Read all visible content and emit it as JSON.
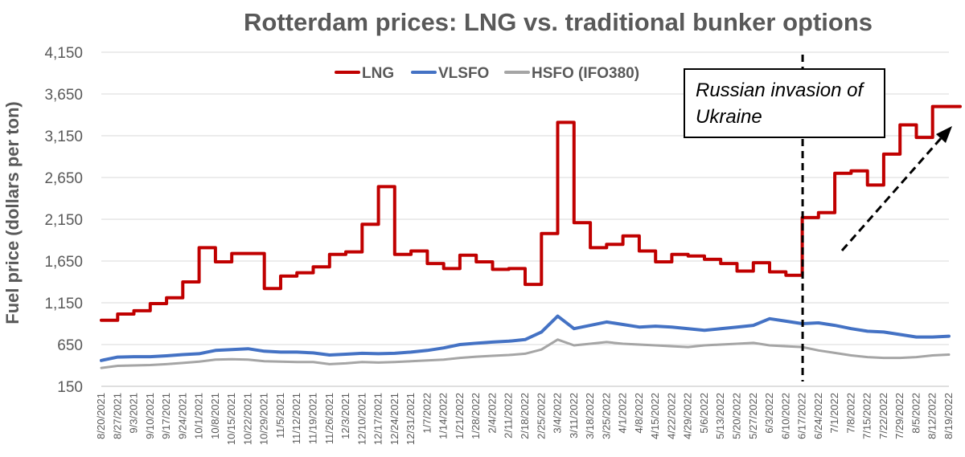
{
  "chart_data": {
    "type": "line",
    "title": "Rotterdam prices: LNG vs. traditional bunker options",
    "ylabel": "Fuel price  (dollars per ton)",
    "xlabel": "",
    "ylim": [
      150,
      4150
    ],
    "yticks": [
      "4,150",
      "3,650",
      "3,150",
      "2,650",
      "2,150",
      "1,650",
      "1,150",
      "650",
      "150"
    ],
    "ytick_values": [
      4150,
      3650,
      3150,
      2650,
      2150,
      1650,
      1150,
      650,
      150
    ],
    "grid": "horizontal",
    "legend_position": "top-left",
    "x": [
      "8/20/2021",
      "8/27/2021",
      "9/3/2021",
      "9/10/2021",
      "9/17/2021",
      "9/24/2021",
      "10/1/2021",
      "10/8/2021",
      "10/15/2021",
      "10/22/2021",
      "10/29/2021",
      "11/5/2021",
      "11/12/2021",
      "11/19/2021",
      "11/26/2021",
      "12/3/2021",
      "12/10/2021",
      "12/17/2021",
      "12/24/2021",
      "12/31/2021",
      "1/7/2022",
      "1/14/2022",
      "1/21/2022",
      "1/28/2022",
      "2/4/2022",
      "2/11/2022",
      "2/18/2022",
      "2/25/2022",
      "3/4/2022",
      "3/11/2022",
      "3/18/2022",
      "3/25/2022",
      "4/1/2022",
      "4/8/2022",
      "4/15/2022",
      "4/22/2022",
      "4/29/2022",
      "5/6/2022",
      "5/13/2022",
      "5/20/2022",
      "5/27/2022",
      "6/3/2022",
      "6/10/2022",
      "6/17/2022",
      "6/24/2022",
      "7/1/2022",
      "7/8/2022",
      "7/15/2022",
      "7/22/2022",
      "7/29/2022",
      "8/5/2022",
      "8/12/2022",
      "8/19/2022"
    ],
    "series": [
      {
        "name": "LNG",
        "color": "#c00000",
        "step": true,
        "values": [
          940,
          1015,
          1055,
          1140,
          1210,
          1400,
          1810,
          1640,
          1740,
          1740,
          1320,
          1470,
          1510,
          1580,
          1730,
          1760,
          2090,
          2540,
          1730,
          1770,
          1620,
          1560,
          1720,
          1640,
          1550,
          1560,
          1370,
          1980,
          3310,
          2110,
          1810,
          1850,
          1950,
          1770,
          1640,
          1730,
          1710,
          1670,
          1620,
          1530,
          1630,
          1520,
          1480,
          2170,
          2230,
          2700,
          2730,
          2560,
          2930,
          3280,
          3130,
          3500,
          3500
        ]
      },
      {
        "name": "VLSFO",
        "color": "#4472c4",
        "values": [
          460,
          500,
          505,
          505,
          515,
          530,
          540,
          580,
          590,
          600,
          570,
          560,
          560,
          550,
          525,
          535,
          545,
          540,
          545,
          560,
          580,
          610,
          650,
          665,
          680,
          690,
          710,
          800,
          990,
          840,
          880,
          920,
          890,
          860,
          870,
          860,
          840,
          820,
          840,
          860,
          880,
          960,
          930,
          900,
          910,
          880,
          840,
          810,
          800,
          770,
          740,
          740,
          750
        ]
      },
      {
        "name": "HSFO (IFO380)",
        "color": "#a5a5a5",
        "values": [
          370,
          395,
          400,
          405,
          415,
          430,
          445,
          470,
          475,
          470,
          450,
          445,
          440,
          440,
          415,
          425,
          440,
          435,
          440,
          450,
          460,
          470,
          490,
          505,
          515,
          525,
          540,
          590,
          710,
          640,
          660,
          680,
          660,
          650,
          640,
          630,
          620,
          640,
          650,
          660,
          670,
          640,
          630,
          620,
          580,
          550,
          520,
          500,
          490,
          490,
          500,
          520,
          530
        ]
      }
    ],
    "annotation": "Russian invasion of Ukraine",
    "annotation_date": "6/17/2022"
  }
}
